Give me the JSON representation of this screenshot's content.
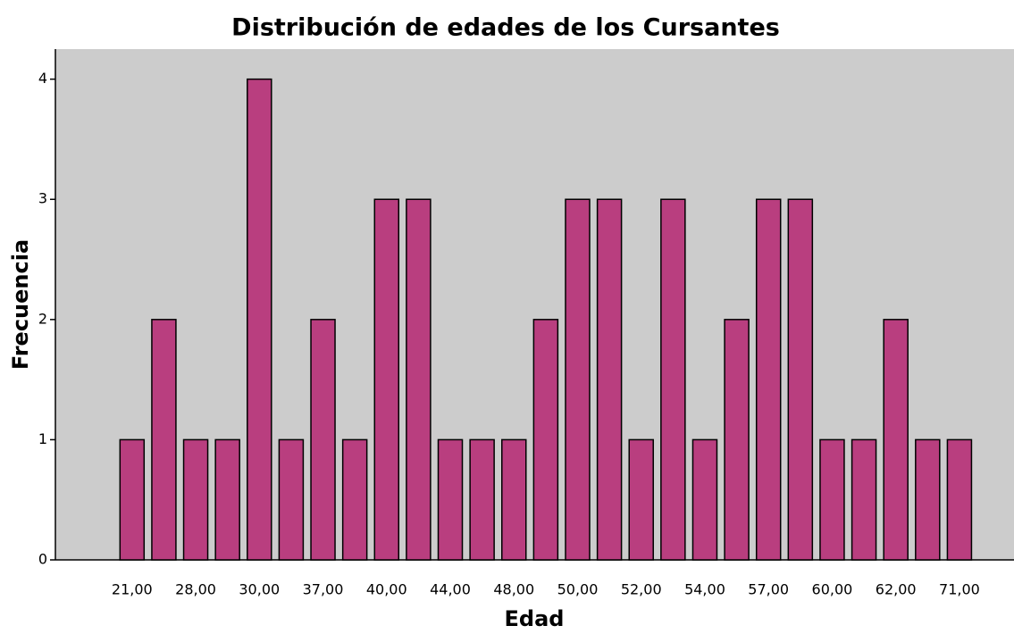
{
  "chart_data": {
    "type": "bar",
    "title": "Distribución de edades de los Cursantes",
    "x_label": "Edad",
    "y_label": "Frecuencia",
    "categories": [
      "21,00",
      null,
      "28,00",
      null,
      "30,00",
      null,
      "37,00",
      null,
      "40,00",
      null,
      "44,00",
      null,
      "48,00",
      null,
      "50,00",
      null,
      "52,00",
      null,
      "54,00",
      null,
      "57,00",
      null,
      "60,00",
      null,
      "62,00",
      null,
      "71,00"
    ],
    "values": [
      1,
      2,
      1,
      1,
      4,
      1,
      2,
      1,
      3,
      3,
      1,
      1,
      1,
      2,
      3,
      3,
      1,
      3,
      1,
      2,
      3,
      3,
      1,
      1,
      2,
      1,
      1
    ],
    "color": "#b93e7f",
    "background": "#cccccc",
    "ylim": [
      0,
      4.25
    ],
    "yticks": [
      0,
      1,
      2,
      3,
      4
    ],
    "grid": false
  }
}
